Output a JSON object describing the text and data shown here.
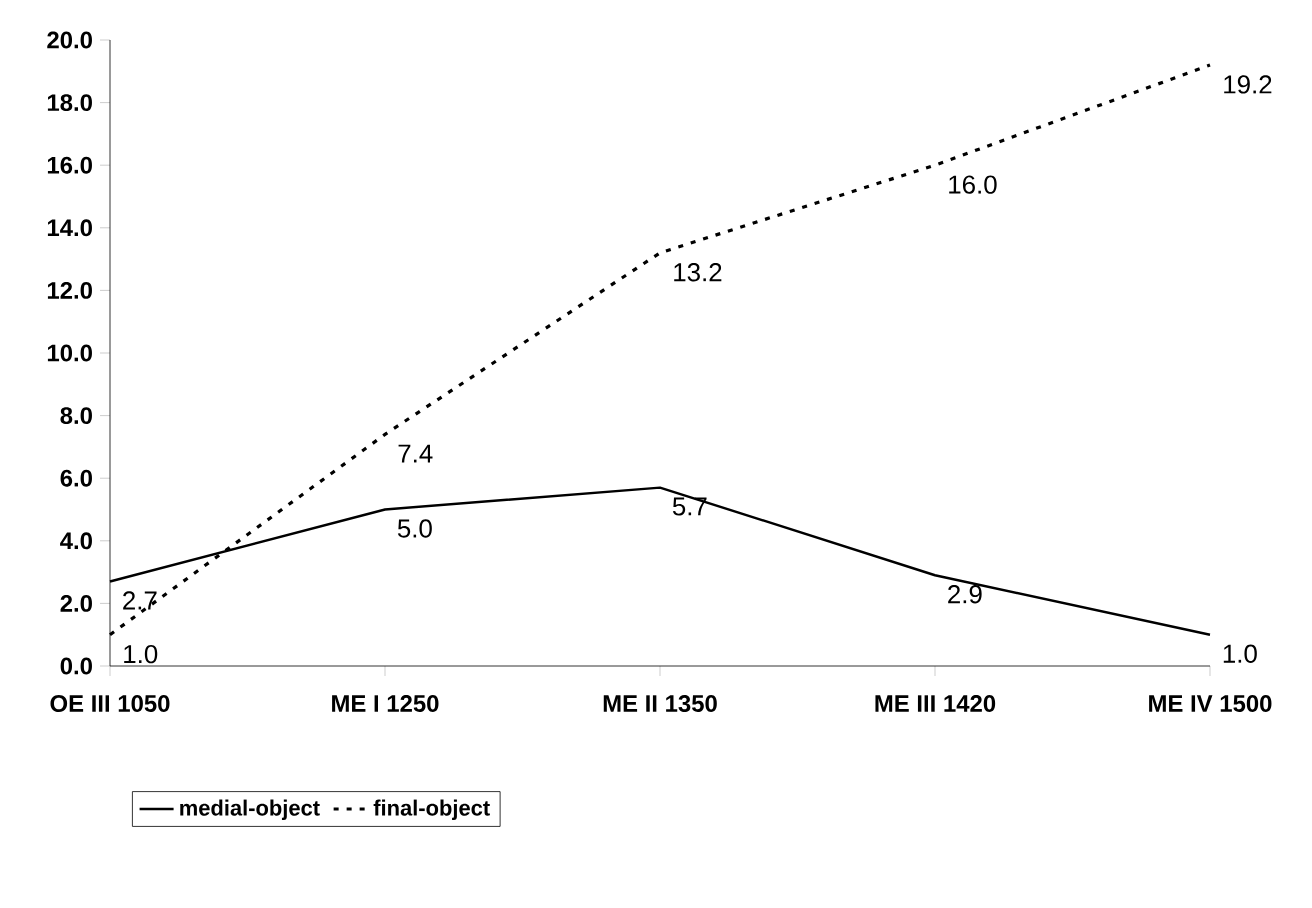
{
  "chart_data": {
    "type": "line",
    "categories": [
      "OE III 1050",
      "ME I 1250",
      "ME II 1350",
      "ME III 1420",
      "ME IV 1500"
    ],
    "series": [
      {
        "name": "medial-object",
        "color": "#000000",
        "line_style": "solid",
        "values": [
          2.7,
          5.0,
          5.7,
          2.9,
          1.0
        ],
        "value_labels": [
          "2.7",
          "5.0",
          "5.7",
          "2.9",
          "1.0"
        ]
      },
      {
        "name": "final-object",
        "color": "#000000",
        "line_style": "dotted",
        "values": [
          1.0,
          7.4,
          13.2,
          16.0,
          19.2
        ],
        "value_labels": [
          "1.0",
          "7.4",
          "13.2",
          "16.0",
          "19.2"
        ]
      }
    ],
    "ylim": [
      0,
      20
    ],
    "yticks": [
      {
        "value": 0,
        "label": "0.0"
      },
      {
        "value": 2,
        "label": "2.0"
      },
      {
        "value": 4,
        "label": "4.0"
      },
      {
        "value": 6,
        "label": "6.0"
      },
      {
        "value": 8,
        "label": "8.0"
      },
      {
        "value": 10,
        "label": "10.0"
      },
      {
        "value": 12,
        "label": "12.0"
      },
      {
        "value": 14,
        "label": "14.0"
      },
      {
        "value": 16,
        "label": "16.0"
      },
      {
        "value": 18,
        "label": "18.0"
      },
      {
        "value": 20,
        "label": "20.0"
      }
    ],
    "legend": "bottom",
    "marker": "none",
    "grid": false
  }
}
